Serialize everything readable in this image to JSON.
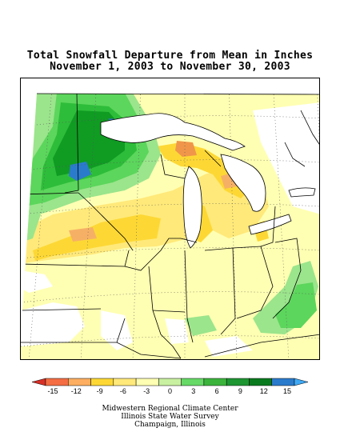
{
  "title": {
    "line1": "Total Snowfall Departure from Mean in Inches",
    "line2": "November 1, 2003 to November 30, 2003"
  },
  "legend": {
    "units": "inches",
    "ticks": [
      "-15",
      "-12",
      "-9",
      "-6",
      "-3",
      "0",
      "3",
      "6",
      "9",
      "12",
      "15"
    ],
    "colors": [
      "#d73027",
      "#f46d43",
      "#fdae61",
      "#fdd835",
      "#ffe97a",
      "#ffffb3",
      "#c8f0a0",
      "#66d966",
      "#3cb43c",
      "#1e9632",
      "#0a7a1e",
      "#2b7bcc",
      "#3fa9f5"
    ]
  },
  "credits": {
    "line1": "Midwestern Regional Climate Center",
    "line2": "Illinois State Water Survey",
    "line3": "Champaign, Illinois"
  },
  "map": {
    "region": "Upper Midwest / Great Lakes",
    "categories": {
      "deep_negative": "#f0964a",
      "negative": "#fdd835",
      "slight_negative": "#ffe97a",
      "near_zero": "#ffffb3",
      "slight_positive": "#9be58c",
      "positive": "#5cd65c",
      "more_positive": "#2ebd3a",
      "high_positive": "#109b23",
      "very_high": "#2b7bcc"
    }
  }
}
